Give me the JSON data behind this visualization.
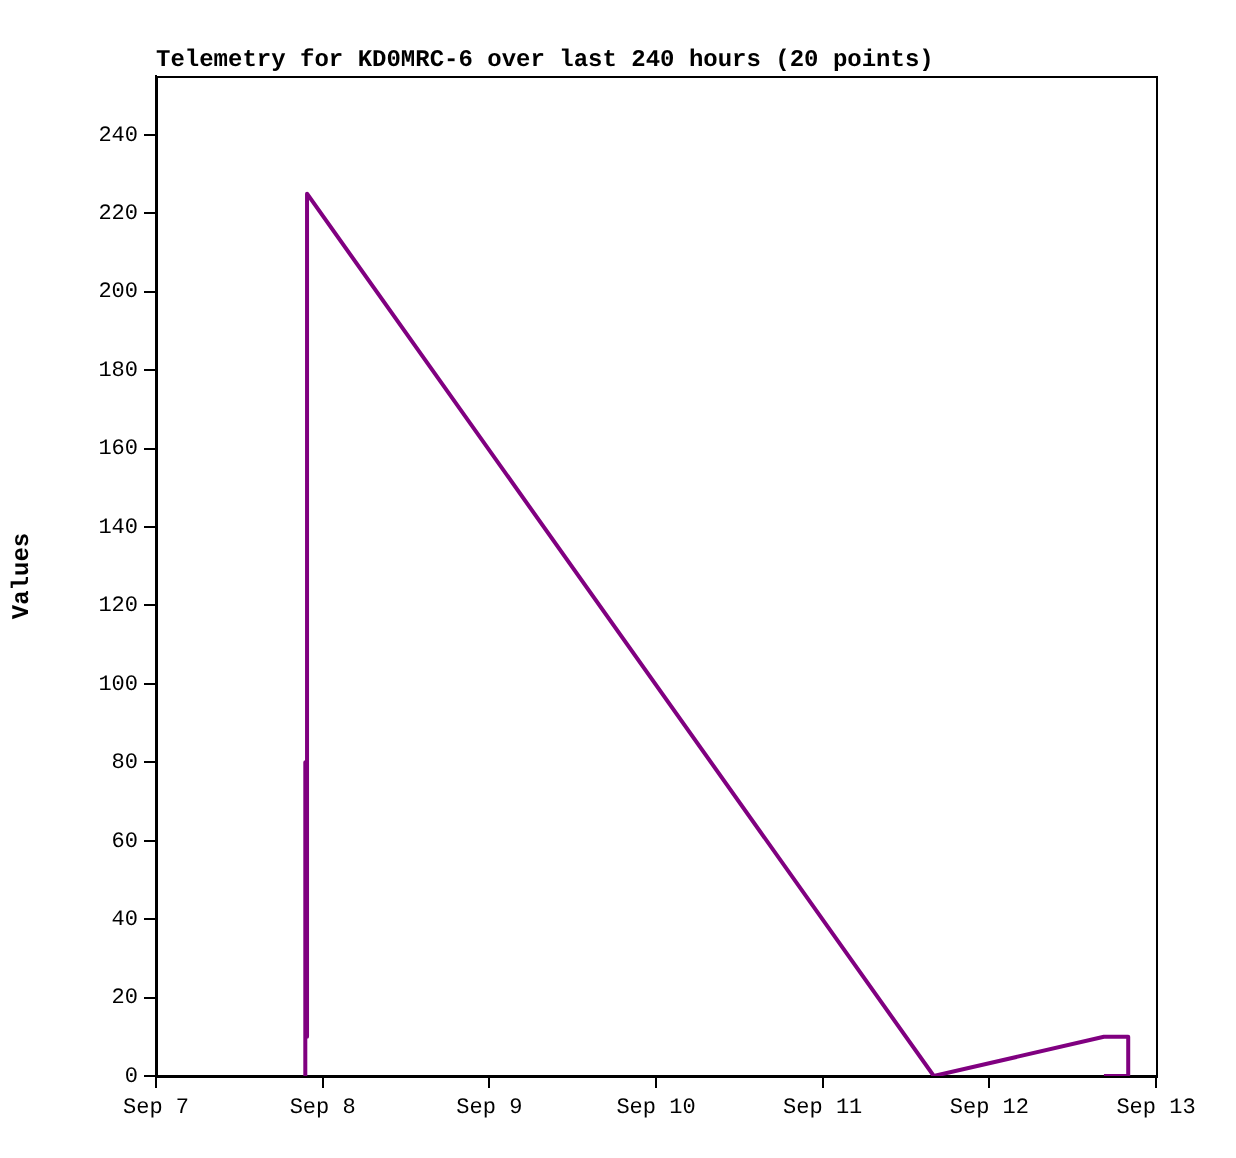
{
  "chart_data": {
    "type": "line",
    "title": "Telemetry for KD0MRC-6 over last 240 hours (20 points)",
    "ylabel": "Values",
    "x": [
      "--09-07T21:30",
      "--09-07T21:30",
      "--09-07T21:45",
      "--09-07T21:45",
      "--09-11T16:00",
      "--09-12T16:30",
      "--09-12T20:00",
      "--09-12T20:00",
      "--09-12T16:30"
    ],
    "series": [
      {
        "color": "#800080",
        "values": [
          0,
          80,
          10,
          225,
          0,
          10,
          10,
          0,
          0
        ]
      }
    ],
    "xlim": [
      "--09-07",
      "--09-13"
    ],
    "xticks": [
      {
        "value": "--09-07",
        "label": "Sep 7"
      },
      {
        "value": "--09-08",
        "label": "Sep 8"
      },
      {
        "value": "--09-09",
        "label": "Sep 9"
      },
      {
        "value": "--09-10",
        "label": "Sep 10"
      },
      {
        "value": "--09-11",
        "label": "Sep 11"
      },
      {
        "value": "--09-12",
        "label": "Sep 12"
      },
      {
        "value": "--09-13",
        "label": "Sep 13"
      }
    ],
    "ylim": [
      0,
      255
    ],
    "yticks": [
      0,
      20,
      40,
      60,
      80,
      100,
      120,
      140,
      160,
      180,
      200,
      220,
      240
    ],
    "grid": false,
    "legend": false,
    "marker": "none",
    "line_style": "solid"
  }
}
